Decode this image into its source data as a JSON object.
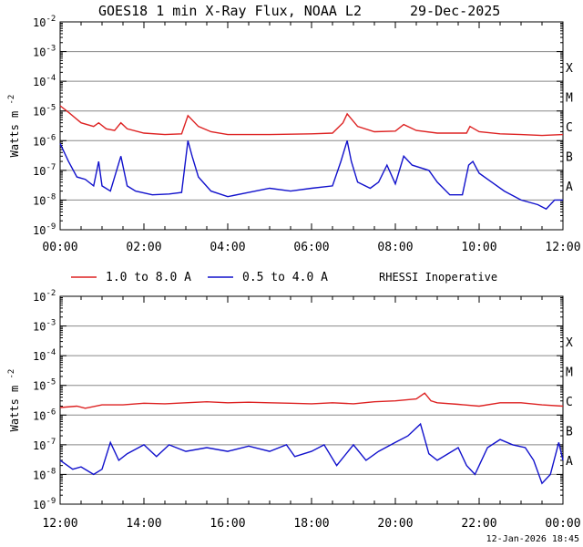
{
  "header": {
    "title": "GOES18 1 min X-Ray Flux, NOAA L2",
    "date": "29-Dec-2025"
  },
  "footer": {
    "timestamp": "12-Jan-2026 18:45"
  },
  "legend": {
    "items": [
      {
        "label": "1.0 to 8.0 A",
        "color": "#dd2222"
      },
      {
        "label": "0.5 to 4.0 A",
        "color": "#1111cc"
      }
    ],
    "note": "RHESSI Inoperative"
  },
  "chart_data": [
    {
      "type": "line",
      "title": "GOES18 1 min X-Ray Flux, NOAA L2    29-Dec-2025",
      "ylabel_base": "Watts m",
      "ylabel_exp": "-2",
      "ylog": true,
      "ylim": [
        1e-09,
        0.01
      ],
      "y_ticks": [
        {
          "base": "10",
          "exp": "-2"
        },
        {
          "base": "10",
          "exp": "-3"
        },
        {
          "base": "10",
          "exp": "-4"
        },
        {
          "base": "10",
          "exp": "-5"
        },
        {
          "base": "10",
          "exp": "-6"
        },
        {
          "base": "10",
          "exp": "-7"
        },
        {
          "base": "10",
          "exp": "-8"
        },
        {
          "base": "10",
          "exp": "-9"
        }
      ],
      "flare_classes": [
        "X",
        "M",
        "C",
        "B",
        "A"
      ],
      "x_ticks": [
        "00:00",
        "02:00",
        "04:00",
        "06:00",
        "08:00",
        "10:00",
        "12:00"
      ],
      "xlim_hours": [
        0,
        12
      ],
      "grid": true,
      "series": [
        {
          "name": "1.0 to 8.0 A",
          "color": "#dd2222",
          "points": [
            [
              0,
              1.5e-05
            ],
            [
              0.2,
              9e-06
            ],
            [
              0.5,
              4e-06
            ],
            [
              0.8,
              3e-06
            ],
            [
              0.92,
              4e-06
            ],
            [
              1.1,
              2.5e-06
            ],
            [
              1.3,
              2.2e-06
            ],
            [
              1.45,
              4e-06
            ],
            [
              1.6,
              2.5e-06
            ],
            [
              2.0,
              1.8e-06
            ],
            [
              2.5,
              1.6e-06
            ],
            [
              2.9,
              1.7e-06
            ],
            [
              3.05,
              7e-06
            ],
            [
              3.3,
              3e-06
            ],
            [
              3.6,
              2e-06
            ],
            [
              4.0,
              1.6e-06
            ],
            [
              5.0,
              1.6e-06
            ],
            [
              6.0,
              1.7e-06
            ],
            [
              6.5,
              1.8e-06
            ],
            [
              6.75,
              4e-06
            ],
            [
              6.85,
              8e-06
            ],
            [
              7.1,
              3e-06
            ],
            [
              7.5,
              2e-06
            ],
            [
              8.0,
              2.1e-06
            ],
            [
              8.2,
              3.5e-06
            ],
            [
              8.5,
              2.2e-06
            ],
            [
              9.0,
              1.8e-06
            ],
            [
              9.7,
              1.8e-06
            ],
            [
              9.78,
              3e-06
            ],
            [
              10.0,
              2e-06
            ],
            [
              10.5,
              1.7e-06
            ],
            [
              11.0,
              1.6e-06
            ],
            [
              11.5,
              1.5e-06
            ],
            [
              12.0,
              1.6e-06
            ]
          ]
        },
        {
          "name": "0.5 to 4.0 A",
          "color": "#1111cc",
          "points": [
            [
              0,
              8e-07
            ],
            [
              0.2,
              2e-07
            ],
            [
              0.4,
              6e-08
            ],
            [
              0.6,
              5e-08
            ],
            [
              0.8,
              3e-08
            ],
            [
              0.92,
              2e-07
            ],
            [
              1.0,
              3e-08
            ],
            [
              1.2,
              2e-08
            ],
            [
              1.45,
              3e-07
            ],
            [
              1.6,
              3e-08
            ],
            [
              1.8,
              2e-08
            ],
            [
              2.2,
              1.5e-08
            ],
            [
              2.6,
              1.6e-08
            ],
            [
              2.9,
              1.8e-08
            ],
            [
              3.05,
              1e-06
            ],
            [
              3.15,
              3e-07
            ],
            [
              3.3,
              6e-08
            ],
            [
              3.6,
              2e-08
            ],
            [
              4.0,
              1.3e-08
            ],
            [
              4.5,
              1.8e-08
            ],
            [
              5.0,
              2.5e-08
            ],
            [
              5.5,
              2e-08
            ],
            [
              6.0,
              2.5e-08
            ],
            [
              6.5,
              3e-08
            ],
            [
              6.7,
              2e-07
            ],
            [
              6.85,
              1e-06
            ],
            [
              6.95,
              2e-07
            ],
            [
              7.1,
              4e-08
            ],
            [
              7.4,
              2.5e-08
            ],
            [
              7.6,
              4e-08
            ],
            [
              7.8,
              1.5e-07
            ],
            [
              8.0,
              3.5e-08
            ],
            [
              8.2,
              3e-07
            ],
            [
              8.4,
              1.5e-07
            ],
            [
              8.8,
              1e-07
            ],
            [
              9.0,
              4e-08
            ],
            [
              9.3,
              1.5e-08
            ],
            [
              9.6,
              1.5e-08
            ],
            [
              9.75,
              1.5e-07
            ],
            [
              9.85,
              2e-07
            ],
            [
              10.0,
              8e-08
            ],
            [
              10.3,
              4e-08
            ],
            [
              10.6,
              2e-08
            ],
            [
              11.0,
              1e-08
            ],
            [
              11.4,
              7e-09
            ],
            [
              11.6,
              5e-09
            ],
            [
              11.8,
              1e-08
            ],
            [
              12.0,
              1e-08
            ]
          ]
        }
      ]
    },
    {
      "type": "line",
      "ylabel_base": "Watts m",
      "ylabel_exp": "-2",
      "ylog": true,
      "ylim": [
        1e-09,
        0.01
      ],
      "y_ticks": [
        {
          "base": "10",
          "exp": "-2"
        },
        {
          "base": "10",
          "exp": "-3"
        },
        {
          "base": "10",
          "exp": "-4"
        },
        {
          "base": "10",
          "exp": "-5"
        },
        {
          "base": "10",
          "exp": "-6"
        },
        {
          "base": "10",
          "exp": "-7"
        },
        {
          "base": "10",
          "exp": "-8"
        },
        {
          "base": "10",
          "exp": "-9"
        }
      ],
      "flare_classes": [
        "X",
        "M",
        "C",
        "B",
        "A"
      ],
      "x_ticks": [
        "12:00",
        "14:00",
        "16:00",
        "18:00",
        "20:00",
        "22:00",
        "00:00"
      ],
      "xlim_hours": [
        12,
        24
      ],
      "grid": true,
      "series": [
        {
          "name": "1.0 to 8.0 A",
          "color": "#dd2222",
          "points": [
            [
              12,
              1.8e-06
            ],
            [
              12.4,
              2e-06
            ],
            [
              12.6,
              1.7e-06
            ],
            [
              13.0,
              2.2e-06
            ],
            [
              13.5,
              2.2e-06
            ],
            [
              14.0,
              2.5e-06
            ],
            [
              14.5,
              2.4e-06
            ],
            [
              15.0,
              2.6e-06
            ],
            [
              15.5,
              2.8e-06
            ],
            [
              16.0,
              2.6e-06
            ],
            [
              16.5,
              2.7e-06
            ],
            [
              17.0,
              2.6e-06
            ],
            [
              17.5,
              2.5e-06
            ],
            [
              18.0,
              2.4e-06
            ],
            [
              18.5,
              2.6e-06
            ],
            [
              19.0,
              2.4e-06
            ],
            [
              19.5,
              2.8e-06
            ],
            [
              20.0,
              3e-06
            ],
            [
              20.5,
              3.5e-06
            ],
            [
              20.7,
              5.5e-06
            ],
            [
              20.85,
              3e-06
            ],
            [
              21.0,
              2.6e-06
            ],
            [
              21.5,
              2.3e-06
            ],
            [
              22.0,
              2e-06
            ],
            [
              22.5,
              2.6e-06
            ],
            [
              23.0,
              2.6e-06
            ],
            [
              23.5,
              2.2e-06
            ],
            [
              24.0,
              2e-06
            ]
          ]
        },
        {
          "name": "0.5 to 4.0 A",
          "color": "#1111cc",
          "points": [
            [
              12,
              3e-08
            ],
            [
              12.3,
              1.5e-08
            ],
            [
              12.5,
              1.8e-08
            ],
            [
              12.8,
              1e-08
            ],
            [
              13.0,
              1.5e-08
            ],
            [
              13.2,
              1.2e-07
            ],
            [
              13.4,
              3e-08
            ],
            [
              13.6,
              5e-08
            ],
            [
              14.0,
              1e-07
            ],
            [
              14.3,
              4e-08
            ],
            [
              14.6,
              1e-07
            ],
            [
              15.0,
              6e-08
            ],
            [
              15.5,
              8e-08
            ],
            [
              16.0,
              6e-08
            ],
            [
              16.5,
              9e-08
            ],
            [
              17.0,
              6e-08
            ],
            [
              17.4,
              1e-07
            ],
            [
              17.6,
              4e-08
            ],
            [
              18.0,
              6e-08
            ],
            [
              18.3,
              1e-07
            ],
            [
              18.6,
              2e-08
            ],
            [
              19.0,
              1e-07
            ],
            [
              19.3,
              3e-08
            ],
            [
              19.6,
              6e-08
            ],
            [
              20.0,
              1.2e-07
            ],
            [
              20.3,
              2e-07
            ],
            [
              20.6,
              5e-07
            ],
            [
              20.8,
              5e-08
            ],
            [
              21.0,
              3e-08
            ],
            [
              21.5,
              8e-08
            ],
            [
              21.7,
              2e-08
            ],
            [
              21.9,
              1e-08
            ],
            [
              22.2,
              8e-08
            ],
            [
              22.5,
              1.5e-07
            ],
            [
              22.8,
              1e-07
            ],
            [
              23.1,
              8e-08
            ],
            [
              23.3,
              3e-08
            ],
            [
              23.5,
              5e-09
            ],
            [
              23.7,
              1e-08
            ],
            [
              23.9,
              1.2e-07
            ],
            [
              24.0,
              3e-08
            ]
          ]
        }
      ]
    }
  ]
}
